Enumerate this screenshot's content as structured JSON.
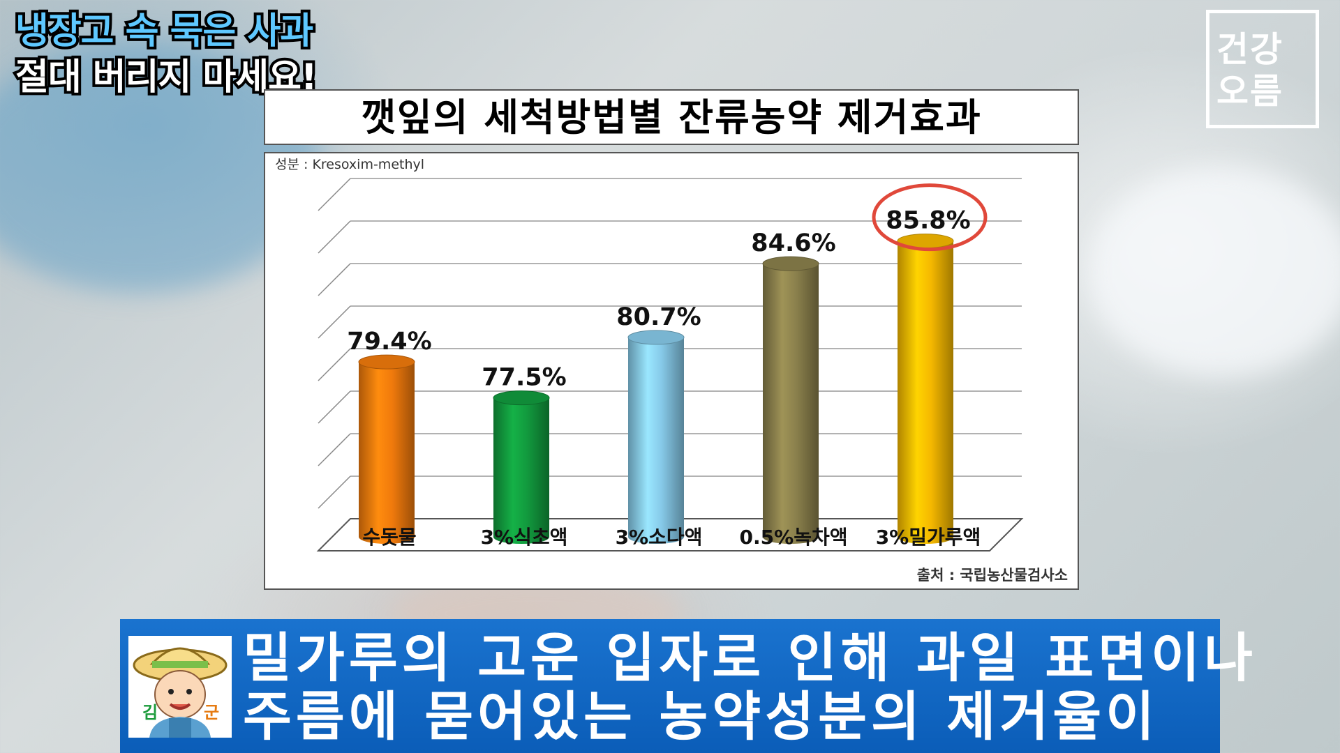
{
  "caption": {
    "line1": "냉장고 속 묵은 사과",
    "line2": "절대 버리지 마세요!"
  },
  "logo": {
    "line1": "건강",
    "line2": "오름"
  },
  "chart_data": {
    "type": "bar",
    "title": "깻잎의 세척방법별 잔류농약 제거효과",
    "component_note": "성분 : Kresoxim-methyl",
    "source": "출처 : 국립농산물검사소",
    "categories": [
      "수돗물",
      "3%식초액",
      "3%소다액",
      "0.5%녹차액",
      "3%밀가루액"
    ],
    "values": [
      79.4,
      77.5,
      80.7,
      84.6,
      85.8
    ],
    "value_labels": [
      "79.4%",
      "77.5%",
      "80.7%",
      "84.6%",
      "85.8%"
    ],
    "bar_colors": [
      "#f07a0c",
      "#129a3e",
      "#86c9e8",
      "#8a804c",
      "#f5b800"
    ],
    "ylim": [
      70,
      88
    ],
    "grid": true,
    "highlighted_category": "3%밀가루액",
    "highlight_color": "#e0483a"
  },
  "subtitle": {
    "line1": "밀가루의 고운 입자로 인해 과일 표면이나",
    "line2": "주름에 묻어있는 농약성분의 제거율이",
    "avatar_left_char": "김",
    "avatar_right_char": "군"
  }
}
